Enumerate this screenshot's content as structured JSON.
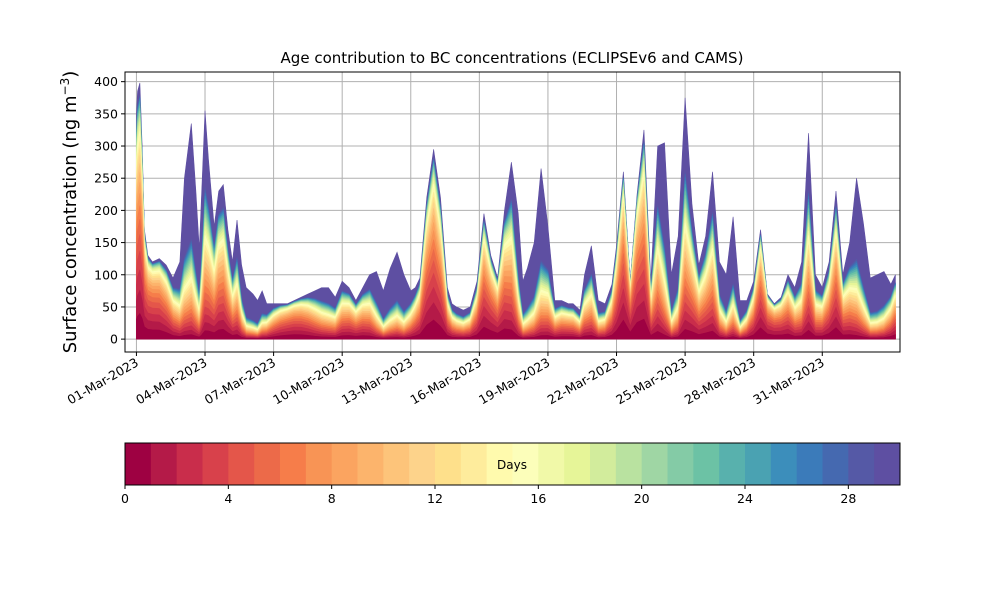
{
  "chart_data": [
    {
      "type": "area",
      "stacked": true,
      "title": "Age contribution to BC concentrations (ECLIPSEv6 and CAMS)",
      "ylabel_prefix": "Surface concentration (ng m",
      "ylabel_sup": "−3",
      "ylabel_suffix": ")",
      "xlabel": "",
      "grid": true,
      "ylim": [
        -20,
        415
      ],
      "yticks": [
        0,
        50,
        100,
        150,
        200,
        250,
        300,
        350,
        400
      ],
      "xlim_day": [
        -0.5,
        33.4
      ],
      "x_start": "01-Mar-2023",
      "x_end": "01-Apr-2023 06:00",
      "xticks": [
        {
          "day": 0,
          "label": "01-Mar-2023"
        },
        {
          "day": 3,
          "label": "04-Mar-2023"
        },
        {
          "day": 6,
          "label": "07-Mar-2023"
        },
        {
          "day": 9,
          "label": "10-Mar-2023"
        },
        {
          "day": 12,
          "label": "13-Mar-2023"
        },
        {
          "day": 15,
          "label": "16-Mar-2023"
        },
        {
          "day": 18,
          "label": "19-Mar-2023"
        },
        {
          "day": 21,
          "label": "22-Mar-2023"
        },
        {
          "day": 24,
          "label": "25-Mar-2023"
        },
        {
          "day": 27,
          "label": "28-Mar-2023"
        },
        {
          "day": 30,
          "label": "31-Mar-2023"
        }
      ],
      "total_series": {
        "x_day": [
          0,
          0.05,
          0.15,
          0.25,
          0.35,
          0.5,
          0.7,
          1.0,
          1.3,
          1.6,
          1.9,
          2.1,
          2.4,
          2.6,
          2.75,
          2.85,
          3.0,
          3.15,
          3.4,
          3.6,
          3.8,
          4.0,
          4.2,
          4.4,
          4.6,
          4.8,
          5.1,
          5.3,
          5.5,
          5.7,
          6.0,
          6.3,
          6.6,
          6.9,
          7.2,
          7.5,
          7.8,
          8.1,
          8.4,
          8.7,
          9.0,
          9.3,
          9.6,
          9.9,
          10.2,
          10.5,
          10.8,
          11.1,
          11.4,
          11.7,
          12.0,
          12.2,
          12.4,
          12.7,
          13.0,
          13.3,
          13.6,
          13.8,
          14.0,
          14.3,
          14.6,
          14.9,
          15.2,
          15.5,
          15.8,
          16.1,
          16.4,
          16.7,
          16.9,
          17.1,
          17.4,
          17.7,
          18.0,
          18.3,
          18.6,
          18.9,
          19.1,
          19.4,
          19.6,
          19.9,
          20.2,
          20.5,
          20.8,
          21.0,
          21.3,
          21.6,
          21.9,
          22.2,
          22.5,
          22.8,
          23.1,
          23.4,
          23.7,
          24.0,
          24.3,
          24.6,
          24.9,
          25.2,
          25.5,
          25.8,
          26.1,
          26.4,
          26.7,
          27.0,
          27.3,
          27.6,
          27.9,
          28.2,
          28.5,
          28.8,
          29.1,
          29.4,
          29.7,
          30.0,
          30.3,
          30.6,
          30.9,
          31.2,
          31.5,
          31.8,
          32.1,
          32.4,
          32.7,
          33.0,
          33.2
        ],
        "values": [
          350,
          385,
          398,
          300,
          170,
          130,
          120,
          125,
          115,
          95,
          120,
          250,
          335,
          230,
          140,
          225,
          355,
          280,
          175,
          230,
          240,
          170,
          120,
          185,
          115,
          80,
          70,
          60,
          75,
          55,
          55,
          55,
          55,
          60,
          65,
          70,
          75,
          80,
          80,
          65,
          90,
          80,
          60,
          80,
          100,
          105,
          75,
          110,
          135,
          100,
          75,
          80,
          95,
          220,
          295,
          220,
          80,
          55,
          50,
          45,
          50,
          90,
          195,
          130,
          95,
          200,
          275,
          195,
          90,
          110,
          150,
          265,
          175,
          60,
          60,
          55,
          55,
          45,
          100,
          145,
          60,
          55,
          85,
          145,
          260,
          90,
          225,
          325,
          90,
          300,
          305,
          100,
          160,
          375,
          210,
          115,
          160,
          260,
          120,
          100,
          190,
          60,
          60,
          90,
          170,
          70,
          55,
          65,
          100,
          80,
          120,
          320,
          100,
          80,
          120,
          230,
          100,
          150,
          250,
          180,
          95,
          100,
          105,
          85,
          100
        ]
      },
      "colorbar": {
        "label": "Days",
        "min": 0,
        "max": 30,
        "ticks": [
          0,
          4,
          8,
          12,
          16,
          20,
          24,
          28
        ],
        "bands": 30,
        "colors": [
          "#9e0142",
          "#b41a48",
          "#c92d4b",
          "#d8414b",
          "#e4564a",
          "#ec6a49",
          "#f67d4a",
          "#f89455",
          "#fba460",
          "#fcb46c",
          "#fdc47a",
          "#fdd38b",
          "#fee08b",
          "#feec9c",
          "#fffaad",
          "#fcfeba",
          "#f1f9a8",
          "#e6f598",
          "#d2ec9c",
          "#b9e2a0",
          "#9fd6a4",
          "#84cba6",
          "#6cc2a5",
          "#58b1ad",
          "#4aa2b2",
          "#3c8ebb",
          "#3b7bba",
          "#4569b0",
          "#5559a6",
          "#5e4fa2"
        ]
      }
    }
  ]
}
